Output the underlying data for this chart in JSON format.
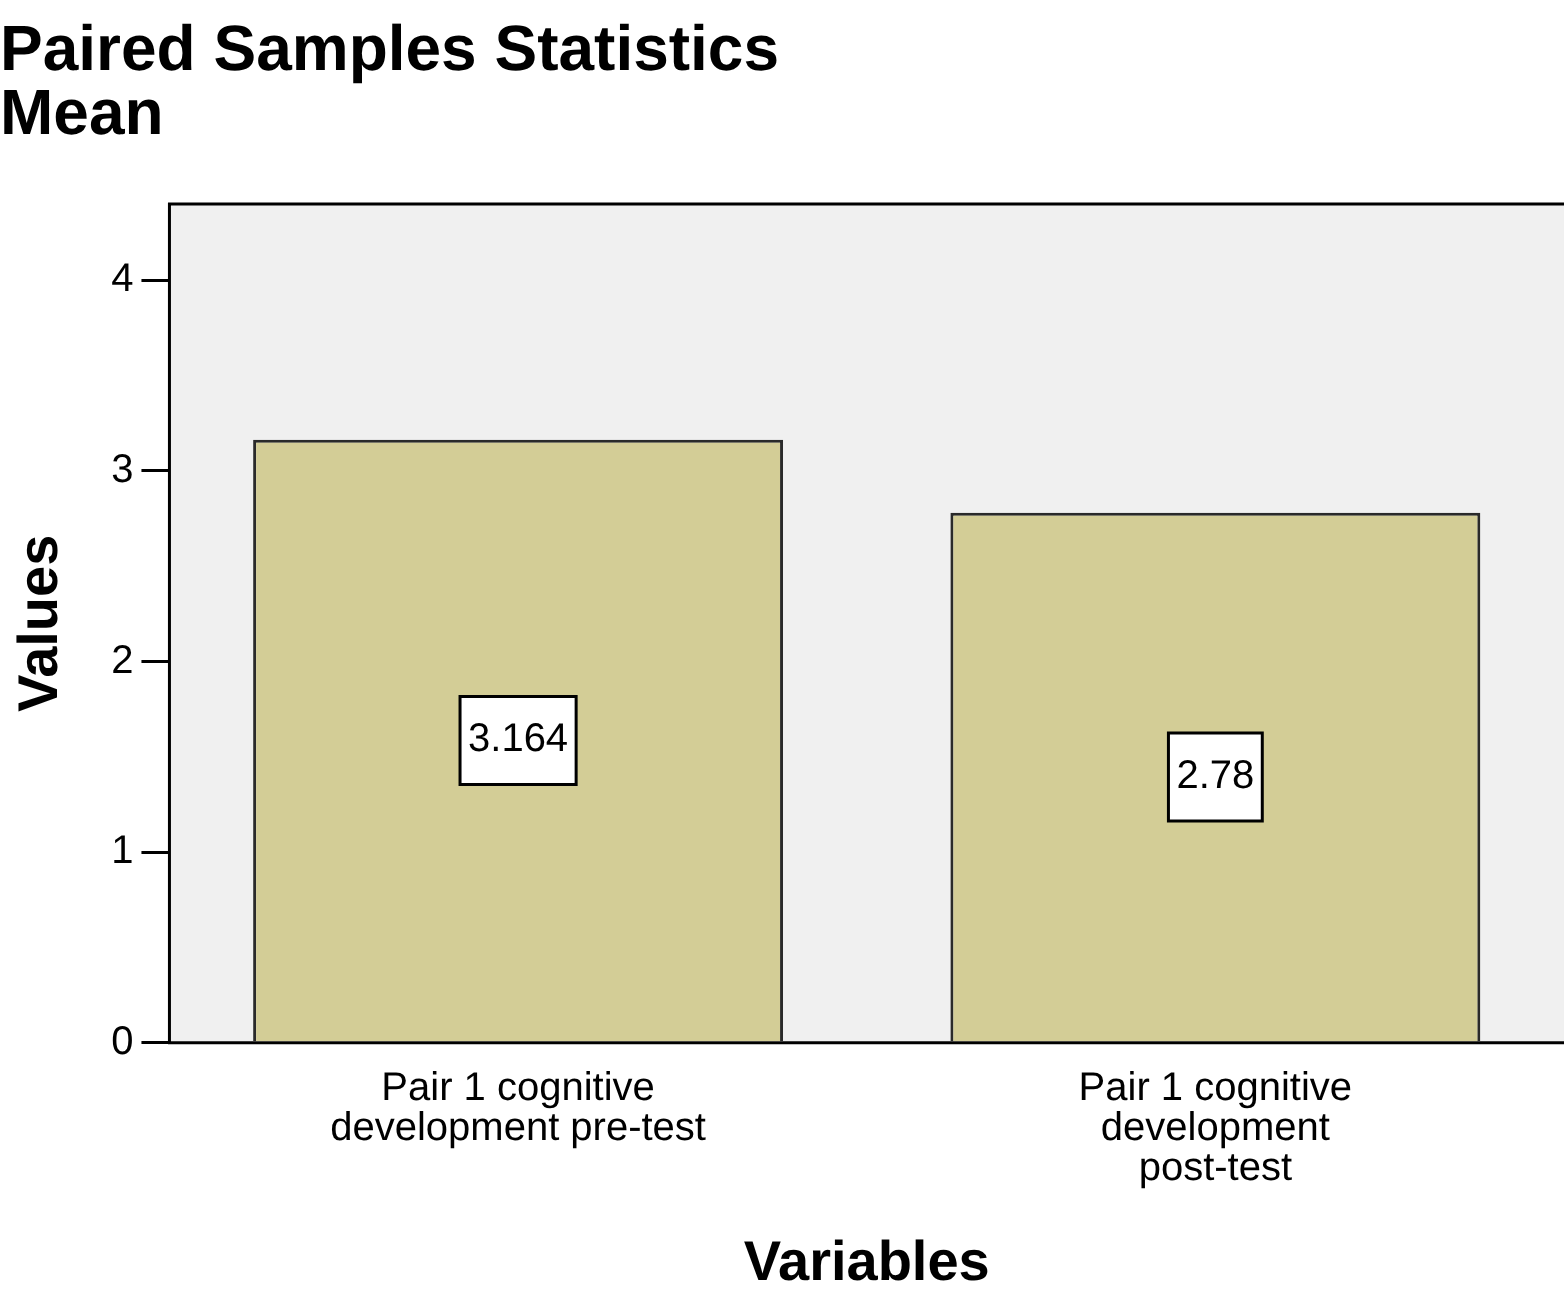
{
  "chart_data": {
    "type": "bar",
    "title": "Paired Samples Statistics",
    "subtitle": "Mean",
    "xlabel": "Variables",
    "ylabel": "Values",
    "categories": [
      "Pair 1 cognitive development pre-test",
      "Pair 1 cognitive development post-test"
    ],
    "values": [
      3.164,
      2.78
    ],
    "color": "#d3cd96",
    "ylim": [
      0,
      4.4
    ],
    "yticks": [
      0,
      1,
      2,
      3,
      4
    ],
    "grid": false,
    "legend": false,
    "data_labels": true
  }
}
